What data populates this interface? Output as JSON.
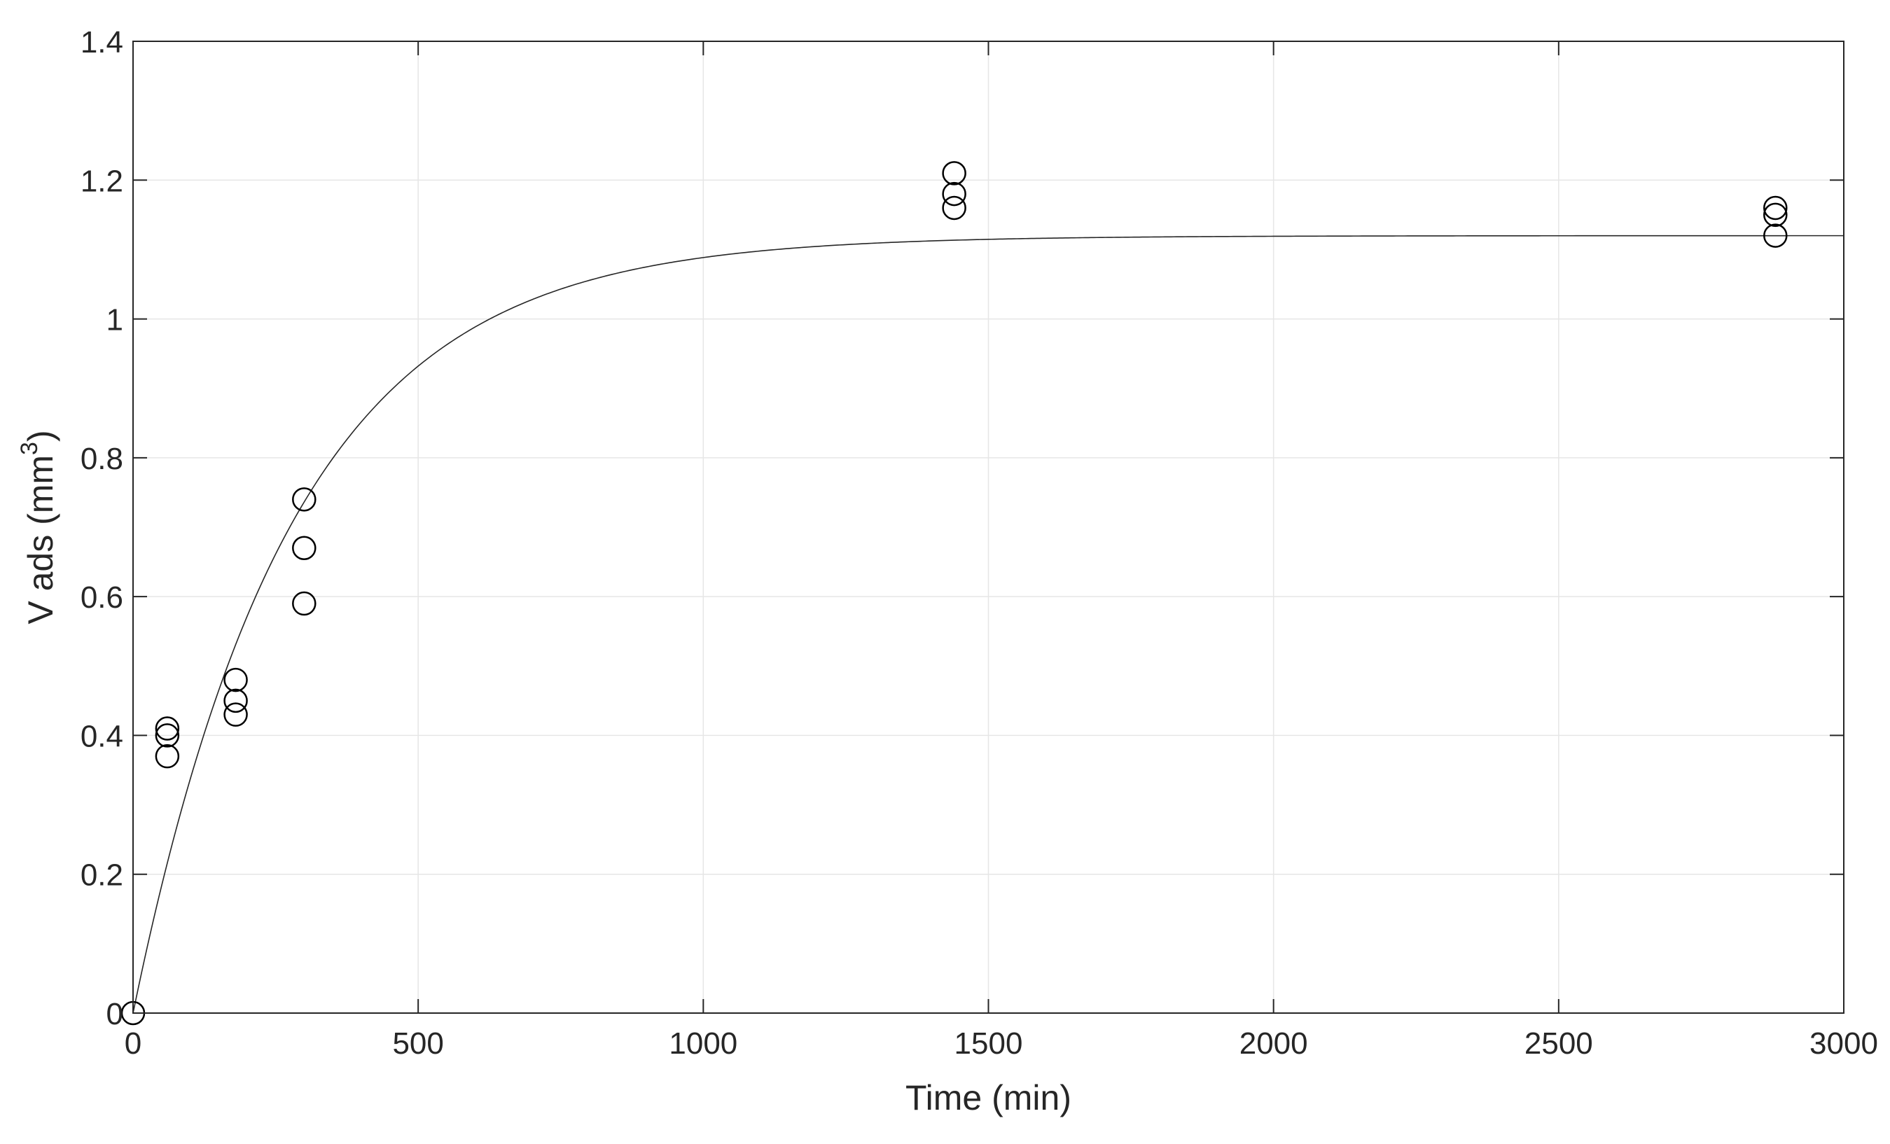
{
  "chart_data": {
    "type": "scatter",
    "xlabel": "Time (min)",
    "ylabel_main": "V ads (mm",
    "ylabel_sup": "3",
    "ylabel_close": ")",
    "xlim": [
      0,
      3000
    ],
    "ylim": [
      0,
      1.4
    ],
    "x_ticks": [
      0,
      500,
      1000,
      1500,
      2000,
      2500,
      3000
    ],
    "x_tick_labels": [
      "0",
      "500",
      "1000",
      "1500",
      "2000",
      "2500",
      "3000"
    ],
    "y_ticks": [
      0,
      0.2,
      0.4,
      0.6,
      0.8,
      1.0,
      1.2,
      1.4
    ],
    "y_tick_labels": [
      "0",
      "0.2",
      "0.4",
      "0.6",
      "0.8",
      "1",
      "1.2",
      "1.4"
    ],
    "grid": true,
    "legend": "none",
    "marker": "open-circle",
    "colors": {
      "markers": "#000000",
      "fit": "#262626",
      "grid": "#e6e6e6",
      "axes": "#262626"
    },
    "points": [
      {
        "x": 0,
        "y": 0.0
      },
      {
        "x": 60,
        "y": 0.41
      },
      {
        "x": 60,
        "y": 0.4
      },
      {
        "x": 60,
        "y": 0.37
      },
      {
        "x": 180,
        "y": 0.48
      },
      {
        "x": 180,
        "y": 0.45
      },
      {
        "x": 180,
        "y": 0.43
      },
      {
        "x": 300,
        "y": 0.74
      },
      {
        "x": 300,
        "y": 0.67
      },
      {
        "x": 300,
        "y": 0.59
      },
      {
        "x": 1440,
        "y": 1.21
      },
      {
        "x": 1440,
        "y": 1.18
      },
      {
        "x": 1440,
        "y": 1.16
      },
      {
        "x": 2880,
        "y": 1.16
      },
      {
        "x": 2880,
        "y": 1.15
      },
      {
        "x": 2880,
        "y": 1.12
      }
    ],
    "fit_curve": {
      "type": "line",
      "model": "first-order exponential",
      "plateau": 1.12,
      "rate_per_min": 0.00357,
      "x_range": [
        0,
        3000
      ]
    }
  }
}
